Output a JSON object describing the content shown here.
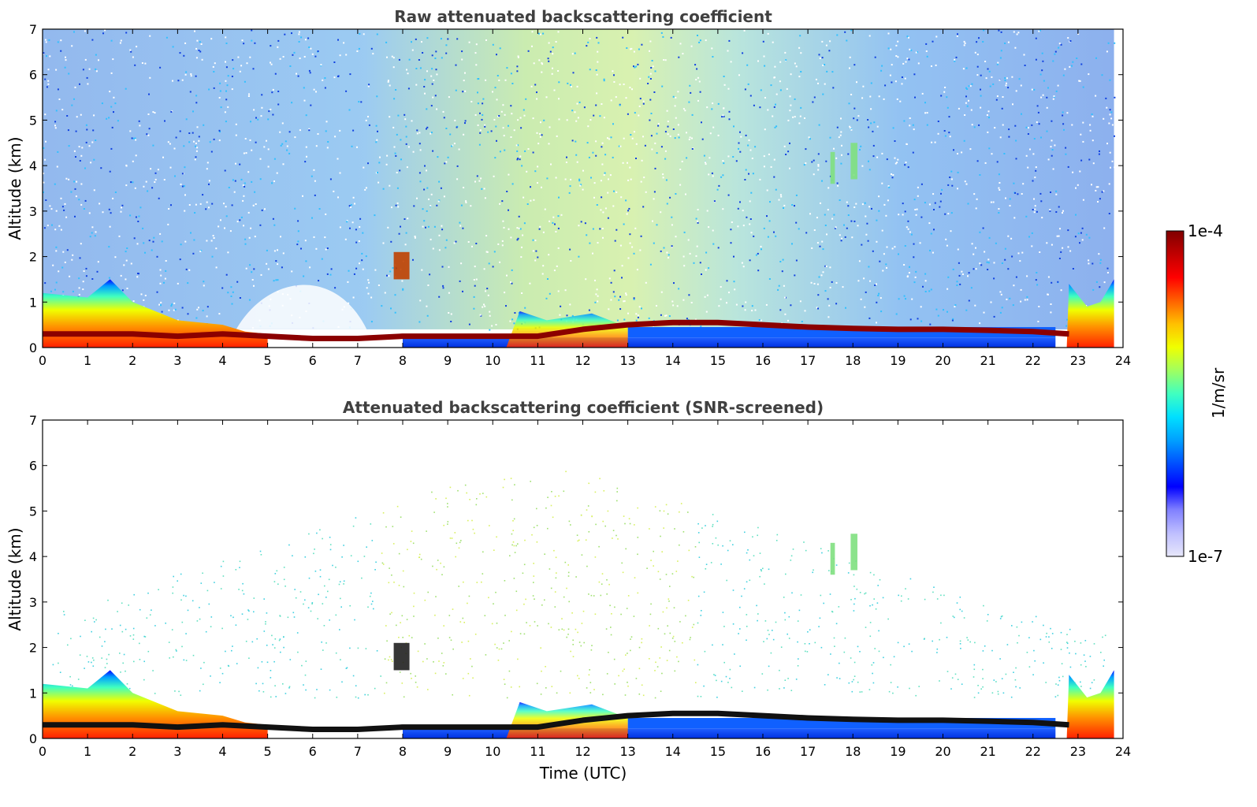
{
  "chart_data": [
    {
      "type": "heatmap",
      "title": "Raw attenuated backscattering coefficient",
      "xlabel": "",
      "ylabel": "Altitude (km)",
      "xlim": [
        0,
        24
      ],
      "ylim": [
        0,
        7
      ],
      "xticks": [
        "0",
        "1",
        "2",
        "3",
        "4",
        "5",
        "6",
        "7",
        "8",
        "9",
        "10",
        "11",
        "12",
        "13",
        "14",
        "15",
        "16",
        "17",
        "18",
        "19",
        "20",
        "21",
        "22",
        "23",
        "24"
      ],
      "yticks": [
        "0",
        "1",
        "2",
        "3",
        "4",
        "5",
        "6",
        "7"
      ],
      "layer_top_km": [
        {
          "t": 0,
          "z": 0.3
        },
        {
          "t": 1,
          "z": 0.3
        },
        {
          "t": 2,
          "z": 0.3
        },
        {
          "t": 3,
          "z": 0.25
        },
        {
          "t": 4,
          "z": 0.3
        },
        {
          "t": 5,
          "z": 0.25
        },
        {
          "t": 6,
          "z": 0.2
        },
        {
          "t": 7,
          "z": 0.2
        },
        {
          "t": 8,
          "z": 0.25
        },
        {
          "t": 9,
          "z": 0.25
        },
        {
          "t": 10,
          "z": 0.25
        },
        {
          "t": 11,
          "z": 0.25
        },
        {
          "t": 12,
          "z": 0.4
        },
        {
          "t": 13,
          "z": 0.5
        },
        {
          "t": 14,
          "z": 0.55
        },
        {
          "t": 15,
          "z": 0.55
        },
        {
          "t": 16,
          "z": 0.5
        },
        {
          "t": 17,
          "z": 0.45
        },
        {
          "t": 18,
          "z": 0.42
        },
        {
          "t": 19,
          "z": 0.4
        },
        {
          "t": 20,
          "z": 0.4
        },
        {
          "t": 21,
          "z": 0.38
        },
        {
          "t": 22,
          "z": 0.35
        },
        {
          "t": 22.8,
          "z": 0.3
        }
      ],
      "aerosol_top_km": [
        {
          "t": 0,
          "z": 1.2
        },
        {
          "t": 1,
          "z": 1.1
        },
        {
          "t": 1.5,
          "z": 1.5
        },
        {
          "t": 2,
          "z": 1.0
        },
        {
          "t": 3,
          "z": 0.6
        },
        {
          "t": 4,
          "z": 0.5
        },
        {
          "t": 4.5,
          "z": 0.35
        },
        {
          "t": 5,
          "z": 0.3
        }
      ],
      "cloud_patches": [
        {
          "t0": 7.8,
          "t1": 8.15,
          "z0": 1.5,
          "z1": 2.1
        },
        {
          "t0": 17.5,
          "t1": 17.6,
          "z0": 3.6,
          "z1": 4.3
        },
        {
          "t0": 17.95,
          "t1": 18.1,
          "z0": 3.7,
          "z1": 4.5
        }
      ]
    },
    {
      "type": "heatmap",
      "title": "Attenuated backscattering coefficient (SNR-screened)",
      "xlabel": "Time (UTC)",
      "ylabel": "Altitude (km)",
      "xlim": [
        0,
        24
      ],
      "ylim": [
        0,
        7
      ],
      "xticks": [
        "0",
        "1",
        "2",
        "3",
        "4",
        "5",
        "6",
        "7",
        "8",
        "9",
        "10",
        "11",
        "12",
        "13",
        "14",
        "15",
        "16",
        "17",
        "18",
        "19",
        "20",
        "21",
        "22",
        "23",
        "24"
      ],
      "yticks": [
        "0",
        "1",
        "2",
        "3",
        "4",
        "5",
        "6",
        "7"
      ]
    }
  ],
  "colorbar": {
    "max_label": "1e-4",
    "min_label": "1e-7",
    "unit_label": "1/m/sr",
    "colors": [
      "#e6e6fa",
      "#bfbfff",
      "#8080ff",
      "#0000ff",
      "#0050ff",
      "#00a0ff",
      "#00e0ff",
      "#40ffc0",
      "#a0ff60",
      "#f0ff00",
      "#ffc000",
      "#ff6000",
      "#ff0000",
      "#c00000",
      "#800000"
    ]
  }
}
